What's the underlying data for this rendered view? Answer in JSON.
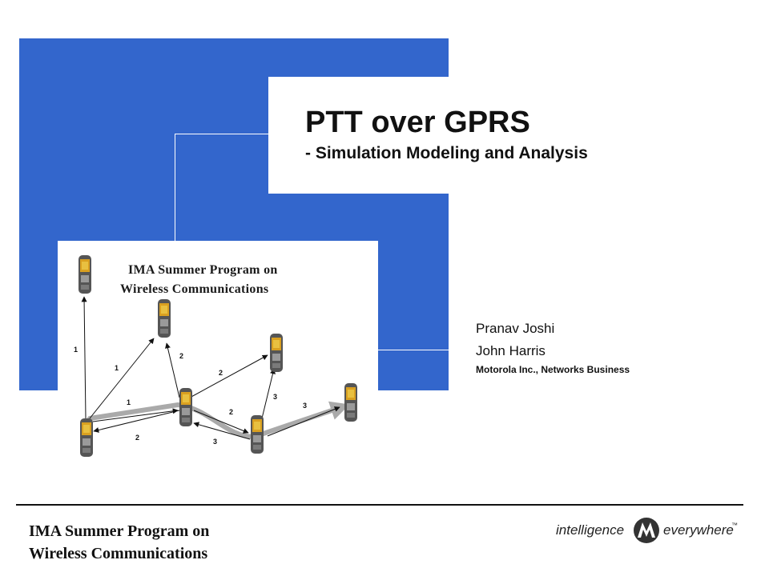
{
  "slide": {
    "title": "PTT over GPRS",
    "subtitle": "- Simulation Modeling and Analysis"
  },
  "authors": {
    "name1": "Pranav Joshi",
    "name2": "John Harris",
    "organization": "Motorola Inc., Networks Business"
  },
  "diagram": {
    "title_line1": "IMA Summer Program on",
    "title_line2": "Wireless Communications",
    "link_labels": [
      "1",
      "1",
      "1",
      "2",
      "2",
      "2",
      "3",
      "3",
      "2",
      "3"
    ]
  },
  "footer": {
    "line1": "IMA Summer Program on",
    "line2": "Wireless Communications"
  },
  "brand": {
    "left_text": "intelligence",
    "right_text": "everywhere",
    "trademark": "™"
  },
  "colors": {
    "accent_blue": "#3366cc"
  }
}
